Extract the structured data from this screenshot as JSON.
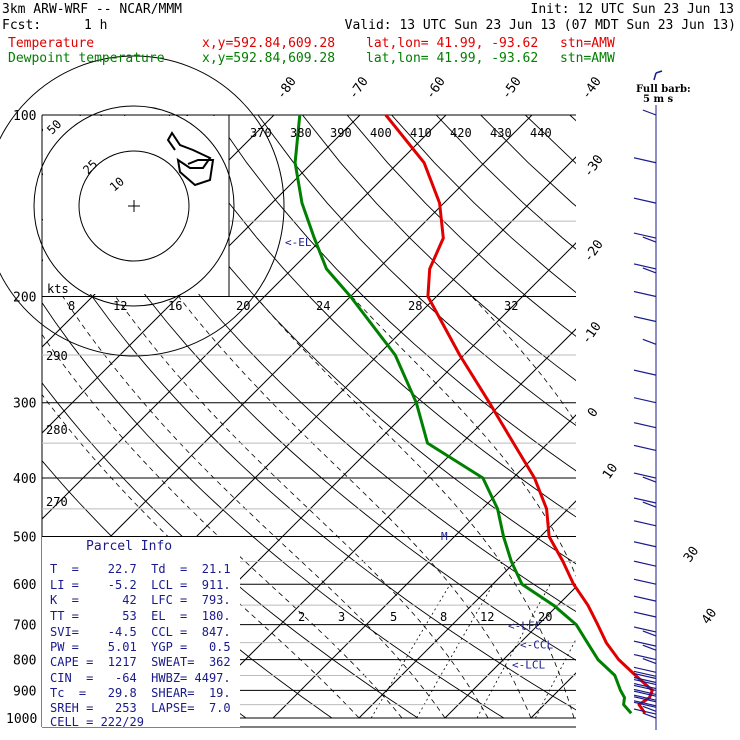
{
  "header": {
    "model": "3km ARW-WRF -- NCAR/MMM",
    "init": "Init: 12 UTC Sun 23 Jun 13",
    "fcst_label": "Fcst:",
    "fcst_value": "1 h",
    "valid": "Valid: 13 UTC Sun 23 Jun 13 (07 MDT Sun 23 Jun 13)",
    "temp_label": "Temperature",
    "dew_label": "Dewpoint temperature",
    "xy": "x,y=592.84,609.28",
    "latlon": "lat,lon= 41.99, -93.62",
    "stn": "stn=AMW"
  },
  "colors": {
    "temperature": "#e00000",
    "dewpoint": "#008000",
    "grid": "#000000",
    "parcel_text": "#1a1a8c",
    "wind": "#1a1a8c"
  },
  "barb_legend": {
    "line1": "Full barb:",
    "line2": "5 m s"
  },
  "hodograph": {
    "ring_labels": [
      "10",
      "25",
      "50"
    ],
    "kts_label": "kts"
  },
  "annotations": {
    "el": "<-EL",
    "lfc": "<-LFC",
    "ccl": "<-CCL",
    "lcl": "<-LCL",
    "m": "M"
  },
  "parcel_info": {
    "title": "Parcel Info",
    "rows": [
      "T  =    22.7  Td  =  21.1",
      "LI =    -5.2  LCL =  911.",
      "K  =      42  LFC =  793.",
      "TT =      53  EL  =  180.",
      "SVI=    -4.5  CCL =  847.",
      "PW =    5.01  YGP =   0.5",
      "CAPE =  1217  SWEAT=  362",
      "CIN  =   -64  HWBZ= 4497.",
      "Tc  =   29.8  SHEAR=  19.",
      "SREH =   253  LAPSE=  7.0",
      "CELL = 222/29"
    ]
  },
  "chart_data": {
    "type": "line",
    "title": "",
    "xlabel": "",
    "ylabel": "",
    "y_scale": "log-pressure",
    "pressure_ticks": [
      100,
      200,
      300,
      400,
      500,
      600,
      700,
      800,
      900,
      1000
    ],
    "isotherm_labels": [
      -80,
      -70,
      -60,
      -50,
      -40,
      -30,
      -20,
      -10,
      0,
      10,
      30,
      40
    ],
    "theta_labels": [
      370,
      380,
      390,
      400,
      410,
      420,
      430,
      440
    ],
    "theta_labels_lower": [
      290,
      280,
      270
    ],
    "mixing_ratio_labels": [
      "2",
      "3",
      "5",
      "8",
      "12",
      "20"
    ],
    "hodo_speed_labels": [
      "8",
      "12",
      "16",
      "20",
      "24",
      "28",
      "32"
    ],
    "series": [
      {
        "name": "Temperature",
        "color": "#e00000",
        "points": [
          {
            "p": 982,
            "t": 22.7
          },
          {
            "p": 950,
            "t": 21.0
          },
          {
            "p": 925,
            "t": 21.4
          },
          {
            "p": 900,
            "t": 20.9
          },
          {
            "p": 850,
            "t": 17.2
          },
          {
            "p": 800,
            "t": 13.4
          },
          {
            "p": 750,
            "t": 10.0
          },
          {
            "p": 700,
            "t": 6.9
          },
          {
            "p": 650,
            "t": 3.5
          },
          {
            "p": 600,
            "t": -0.6
          },
          {
            "p": 550,
            "t": -4.5
          },
          {
            "p": 500,
            "t": -9.0
          },
          {
            "p": 450,
            "t": -12.5
          },
          {
            "p": 400,
            "t": -17.5
          },
          {
            "p": 350,
            "t": -24.0
          },
          {
            "p": 300,
            "t": -31.5
          },
          {
            "p": 250,
            "t": -40.5
          },
          {
            "p": 200,
            "t": -51.0
          },
          {
            "p": 180,
            "t": -54.0
          },
          {
            "p": 160,
            "t": -56.0
          },
          {
            "p": 140,
            "t": -60.5
          },
          {
            "p": 120,
            "t": -67.0
          },
          {
            "p": 100,
            "t": -77.0
          }
        ]
      },
      {
        "name": "Dewpoint temperature",
        "color": "#008000",
        "points": [
          {
            "p": 982,
            "t": 21.1
          },
          {
            "p": 950,
            "t": 19.2
          },
          {
            "p": 925,
            "t": 18.5
          },
          {
            "p": 900,
            "t": 17.2
          },
          {
            "p": 850,
            "t": 14.8
          },
          {
            "p": 800,
            "t": 11.0
          },
          {
            "p": 750,
            "t": 7.8
          },
          {
            "p": 700,
            "t": 4.4
          },
          {
            "p": 650,
            "t": -0.5
          },
          {
            "p": 600,
            "t": -6.6
          },
          {
            "p": 550,
            "t": -10.5
          },
          {
            "p": 500,
            "t": -14.3
          },
          {
            "p": 450,
            "t": -18.2
          },
          {
            "p": 400,
            "t": -23.5
          },
          {
            "p": 350,
            "t": -34.0
          },
          {
            "p": 300,
            "t": -40.0
          },
          {
            "p": 250,
            "t": -48.0
          },
          {
            "p": 200,
            "t": -60.0
          },
          {
            "p": 180,
            "t": -66.0
          },
          {
            "p": 160,
            "t": -71.0
          },
          {
            "p": 140,
            "t": -76.5
          },
          {
            "p": 120,
            "t": -82.0
          },
          {
            "p": 100,
            "t": -87.0
          }
        ]
      }
    ],
    "levels": {
      "el": 180,
      "lfc": 793,
      "ccl": 847,
      "lcl": 911
    },
    "wind_barbs": [
      {
        "p": 985,
        "speed_ms": 7.5
      },
      {
        "p": 960,
        "speed_ms": 7.5
      },
      {
        "p": 940,
        "speed_ms": 10
      },
      {
        "p": 920,
        "speed_ms": 10
      },
      {
        "p": 900,
        "speed_ms": 10
      },
      {
        "p": 880,
        "speed_ms": 10
      },
      {
        "p": 860,
        "speed_ms": 10
      },
      {
        "p": 840,
        "speed_ms": 10
      },
      {
        "p": 800,
        "speed_ms": 7.5
      },
      {
        "p": 760,
        "speed_ms": 7.5
      },
      {
        "p": 720,
        "speed_ms": 7.5
      },
      {
        "p": 680,
        "speed_ms": 5
      },
      {
        "p": 640,
        "speed_ms": 5
      },
      {
        "p": 600,
        "speed_ms": 5
      },
      {
        "p": 560,
        "speed_ms": 5
      },
      {
        "p": 520,
        "speed_ms": 5
      },
      {
        "p": 480,
        "speed_ms": 5
      },
      {
        "p": 440,
        "speed_ms": 7.5
      },
      {
        "p": 400,
        "speed_ms": 7.5
      },
      {
        "p": 360,
        "speed_ms": 5
      },
      {
        "p": 330,
        "speed_ms": 5
      },
      {
        "p": 300,
        "speed_ms": 5
      },
      {
        "p": 270,
        "speed_ms": 5
      },
      {
        "p": 240,
        "speed_ms": 2.5
      },
      {
        "p": 220,
        "speed_ms": 5
      },
      {
        "p": 200,
        "speed_ms": 5
      },
      {
        "p": 180,
        "speed_ms": 7.5
      },
      {
        "p": 160,
        "speed_ms": 7.5
      },
      {
        "p": 140,
        "speed_ms": 5
      },
      {
        "p": 120,
        "speed_ms": 5
      },
      {
        "p": 100,
        "speed_ms": 2.5
      }
    ]
  }
}
